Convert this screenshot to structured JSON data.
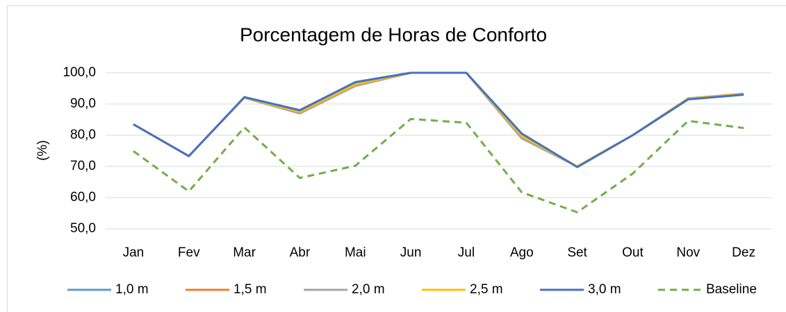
{
  "chart_data": {
    "type": "line",
    "title": "Porcentagem de Horas de Conforto",
    "y_label": "(%)",
    "categories": [
      "Jan",
      "Fev",
      "Mar",
      "Abr",
      "Mai",
      "Jun",
      "Jul",
      "Ago",
      "Set",
      "Out",
      "Nov",
      "Dez"
    ],
    "series": [
      {
        "name": "1,0 m",
        "color": "#5b9bd5",
        "values": [
          83.5,
          73.3,
          92.2,
          88.0,
          97.0,
          100.0,
          100.0,
          80.5,
          69.8,
          80.0,
          91.5,
          93.0
        ]
      },
      {
        "name": "1,5 m",
        "color": "#ed7d31",
        "values": [
          83.5,
          73.3,
          92.0,
          87.0,
          95.8,
          100.0,
          100.0,
          79.0,
          70.0,
          80.0,
          91.8,
          93.3
        ]
      },
      {
        "name": "2,0 m",
        "color": "#a5a5a5",
        "values": [
          83.5,
          73.3,
          92.0,
          87.0,
          95.8,
          100.0,
          100.0,
          79.0,
          70.0,
          80.0,
          91.8,
          93.3
        ]
      },
      {
        "name": "2,5 m",
        "color": "#ffc000",
        "values": [
          83.5,
          73.3,
          92.1,
          87.5,
          96.3,
          100.0,
          100.0,
          79.8,
          70.0,
          80.0,
          91.7,
          93.2
        ]
      },
      {
        "name": "3,0 m",
        "color": "#4472c4",
        "values": [
          83.5,
          73.3,
          92.2,
          88.0,
          97.0,
          100.0,
          100.0,
          80.5,
          69.8,
          80.0,
          91.5,
          93.0
        ]
      },
      {
        "name": "Baseline",
        "color": "#70ad47",
        "dashed": true,
        "values": [
          74.9,
          62.0,
          82.5,
          66.3,
          70.2,
          85.2,
          84.0,
          61.7,
          55.3,
          67.7,
          84.6,
          82.3
        ]
      }
    ],
    "ylim": [
      50,
      100
    ],
    "yticks": [
      {
        "value": 50,
        "label": "50,0"
      },
      {
        "value": 60,
        "label": "60,0"
      },
      {
        "value": 70,
        "label": "70,0"
      },
      {
        "value": 80,
        "label": "80,0"
      },
      {
        "value": 90,
        "label": "90,0"
      },
      {
        "value": 100,
        "label": "100,0"
      }
    ],
    "grid": true,
    "legend": "bottom"
  }
}
